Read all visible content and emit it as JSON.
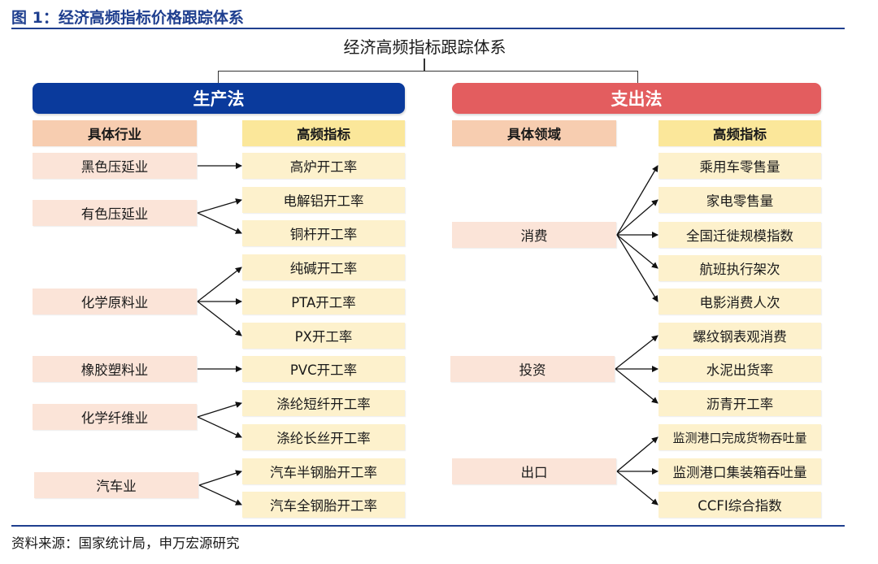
{
  "figure_title": "图 1：经济高频指标价格跟踪体系",
  "main_title": "经济高频指标跟踪体系",
  "source": "资料来源：国家统计局，申万宏源研究",
  "colors": {
    "production_banner": "#0a3a9c",
    "expenditure_banner": "#e35d5f",
    "accent_rule": "#1f3f8f"
  },
  "production": {
    "title": "生产法",
    "left_header": "具体行业",
    "right_header": "高频指标",
    "industries": [
      "黑色压延业",
      "有色压延业",
      "化学原料业",
      "橡胶塑料业",
      "化学纤维业",
      "汽车业"
    ],
    "indicators": [
      "高炉开工率",
      "电解铝开工率",
      "铜杆开工率",
      "纯碱开工率",
      "PTA开工率",
      "PX开工率",
      "PVC开工率",
      "涤纶短纤开工率",
      "涤纶长丝开工率",
      "汽车半钢胎开工率",
      "汽车全钢胎开工率"
    ]
  },
  "expenditure": {
    "title": "支出法",
    "left_header": "具体领域",
    "right_header": "高频指标",
    "areas": [
      "消费",
      "投资",
      "出口"
    ],
    "indicators": [
      "乘用车零售量",
      "家电零售量",
      "全国迁徙规模指数",
      "航班执行架次",
      "电影消费人次",
      "螺纹钢表观消费",
      "水泥出货率",
      "沥青开工率",
      "监测港口完成货物吞吐量",
      "监测港口集装箱吞吐量",
      "CCFI综合指数"
    ]
  }
}
